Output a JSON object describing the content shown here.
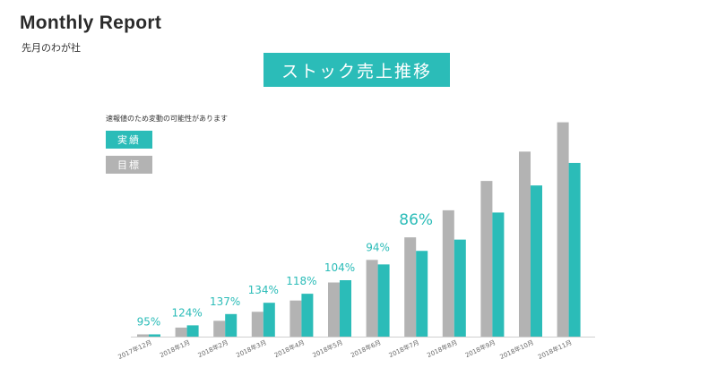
{
  "report": {
    "title": "Monthly Report",
    "subtitle": "先月のわが社"
  },
  "chart_data": {
    "type": "bar",
    "title": "ストック売上推移",
    "note": "速報値のため変動の可能性があります",
    "categories": [
      "2017年12月",
      "2018年1月",
      "2018年2月",
      "2018年3月",
      "2018年4月",
      "2018年5月",
      "2018年6月",
      "2018年7月",
      "2018年8月",
      "2018年9月",
      "2018年10月",
      "2018年11月"
    ],
    "series": [
      {
        "name": "目標",
        "color": "#b3b3b3",
        "values": [
          1,
          4,
          7,
          11,
          16,
          24,
          34,
          44,
          56,
          69,
          82,
          95
        ]
      },
      {
        "name": "実績",
        "color": "#2bbcb8",
        "values": [
          1,
          5,
          10,
          15,
          19,
          25,
          32,
          38,
          43,
          55,
          67,
          77
        ]
      }
    ],
    "rate_labels": [
      "95%",
      "124%",
      "137%",
      "134%",
      "118%",
      "104%",
      "94%",
      "86%",
      "",
      "",
      "",
      ""
    ],
    "ylim": [
      0,
      100
    ],
    "grid": false,
    "legend_position": "top-left"
  }
}
